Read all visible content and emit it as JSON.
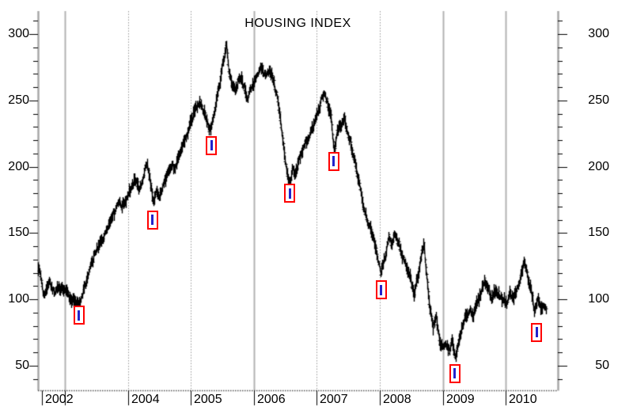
{
  "title": "HOUSING INDEX",
  "y_axis": {
    "side_labels": [
      "300",
      "250",
      "200",
      "150",
      "100",
      "50"
    ],
    "minor_tick_step": 10,
    "minor_tick_min": 40,
    "minor_tick_max": 310
  },
  "x_axis": {
    "ticks": [
      {
        "label": "2002",
        "year": 2002,
        "edge": true,
        "grid": null
      },
      {
        "label": "",
        "year": 2003,
        "edge": false,
        "grid": "solid"
      },
      {
        "label": "2004",
        "year": 2004,
        "edge": false,
        "grid": "dotted"
      },
      {
        "label": "2005",
        "year": 2005,
        "edge": false,
        "grid": "dotted"
      },
      {
        "label": "2006",
        "year": 2006,
        "edge": false,
        "grid": "solid"
      },
      {
        "label": "2007",
        "year": 2007,
        "edge": false,
        "grid": "dotted"
      },
      {
        "label": "2008",
        "year": 2008,
        "edge": false,
        "grid": "dotted"
      },
      {
        "label": "2009",
        "year": 2009,
        "edge": false,
        "grid": "solid"
      },
      {
        "label": "2010",
        "year": 2010,
        "edge": false,
        "grid": "solid"
      }
    ]
  },
  "chart_data": {
    "type": "line",
    "style": "daily-price-bars",
    "title": "HOUSING INDEX",
    "xlabel": "",
    "ylabel": "",
    "xlim": [
      2002.57,
      2010.83
    ],
    "ylim": [
      31,
      318
    ],
    "y_major_ticks": [
      50,
      100,
      150,
      200,
      250,
      300
    ],
    "grid": "vertical-yearly",
    "legend": "none",
    "series": [
      {
        "name": "Housing Index",
        "x": [
          2002.57,
          2002.62,
          2002.66,
          2002.7,
          2002.74,
          2002.79,
          2002.84,
          2002.89,
          2002.94,
          2003.0,
          2003.06,
          2003.12,
          2003.17,
          2003.22,
          2003.27,
          2003.33,
          2003.4,
          2003.47,
          2003.54,
          2003.62,
          2003.7,
          2003.78,
          2003.85,
          2003.91,
          2003.97,
          2004.05,
          2004.13,
          2004.18,
          2004.24,
          2004.3,
          2004.35,
          2004.4,
          2004.45,
          2004.5,
          2004.56,
          2004.63,
          2004.7,
          2004.74,
          2004.8,
          2004.86,
          2004.92,
          2005.0,
          2005.06,
          2005.12,
          2005.18,
          2005.25,
          2005.31,
          2005.38,
          2005.44,
          2005.5,
          2005.56,
          2005.6,
          2005.65,
          2005.7,
          2005.75,
          2005.8,
          2005.85,
          2005.9,
          2005.95,
          2006.0,
          2006.06,
          2006.12,
          2006.18,
          2006.24,
          2006.3,
          2006.36,
          2006.42,
          2006.47,
          2006.52,
          2006.57,
          2006.61,
          2006.65,
          2006.7,
          2006.77,
          2006.84,
          2006.92,
          2007.0,
          2007.06,
          2007.12,
          2007.17,
          2007.22,
          2007.27,
          2007.32,
          2007.38,
          2007.43,
          2007.49,
          2007.55,
          2007.61,
          2007.67,
          2007.73,
          2007.8,
          2007.86,
          2007.92,
          2007.97,
          2008.02,
          2008.08,
          2008.14,
          2008.19,
          2008.24,
          2008.3,
          2008.36,
          2008.42,
          2008.48,
          2008.54,
          2008.6,
          2008.66,
          2008.7,
          2008.74,
          2008.79,
          2008.84,
          2008.89,
          2008.94,
          2009.0,
          2009.05,
          2009.1,
          2009.14,
          2009.19,
          2009.25,
          2009.31,
          2009.37,
          2009.43,
          2009.48,
          2009.54,
          2009.6,
          2009.66,
          2009.72,
          2009.77,
          2009.83,
          2009.88,
          2009.94,
          2010.0,
          2010.06,
          2010.12,
          2010.17,
          2010.22,
          2010.29,
          2010.34,
          2010.4,
          2010.45,
          2010.5,
          2010.55,
          2010.6,
          2010.64
        ],
        "values": [
          124,
          115,
          103,
          106,
          114,
          108,
          105,
          110,
          107,
          108,
          102,
          99,
          97,
          96,
          103,
          112,
          124,
          134,
          141,
          148,
          158,
          166,
          174,
          170,
          176,
          184,
          191,
          181,
          193,
          203,
          189,
          172,
          181,
          177,
          186,
          197,
          201,
          197,
          207,
          216,
          222,
          234,
          243,
          249,
          245,
          234,
          227,
          245,
          260,
          276,
          292,
          272,
          262,
          258,
          264,
          267,
          257,
          252,
          258,
          264,
          271,
          274,
          269,
          273,
          266,
          254,
          235,
          214,
          196,
          186,
          199,
          192,
          203,
          213,
          220,
          228,
          239,
          249,
          256,
          246,
          238,
          211,
          226,
          231,
          236,
          224,
          214,
          201,
          188,
          172,
          159,
          151,
          142,
          128,
          120,
          133,
          147,
          142,
          150,
          141,
          131,
          124,
          116,
          103,
          118,
          134,
          142,
          116,
          95,
          78,
          88,
          70,
          62,
          67,
          60,
          70,
          55,
          68,
          80,
          88,
          92,
          88,
          97,
          105,
          114,
          108,
          100,
          107,
          103,
          101,
          97,
          104,
          101,
          107,
          113,
          130,
          117,
          106,
          91,
          99,
          95,
          93,
          94
        ]
      }
    ],
    "markers": [
      {
        "date": 2003.22,
        "value": 88
      },
      {
        "date": 2004.39,
        "value": 160
      },
      {
        "date": 2005.33,
        "value": 216
      },
      {
        "date": 2006.57,
        "value": 180
      },
      {
        "date": 2007.27,
        "value": 204
      },
      {
        "date": 2008.02,
        "value": 107
      },
      {
        "date": 2009.19,
        "value": 44
      },
      {
        "date": 2010.49,
        "value": 75
      }
    ]
  },
  "colors": {
    "background": "#ffffff",
    "price": "#000000",
    "text": "#000000",
    "axis": "#a8a8a8",
    "bottom_axis": "#555555",
    "tick": "#000000",
    "grid_solid": "#b3b3b3",
    "grid_dotted": "#9a9a9a",
    "marker_box": "#ff0000",
    "marker_fill": "#ffffff",
    "marker_line": "#2222cc"
  }
}
